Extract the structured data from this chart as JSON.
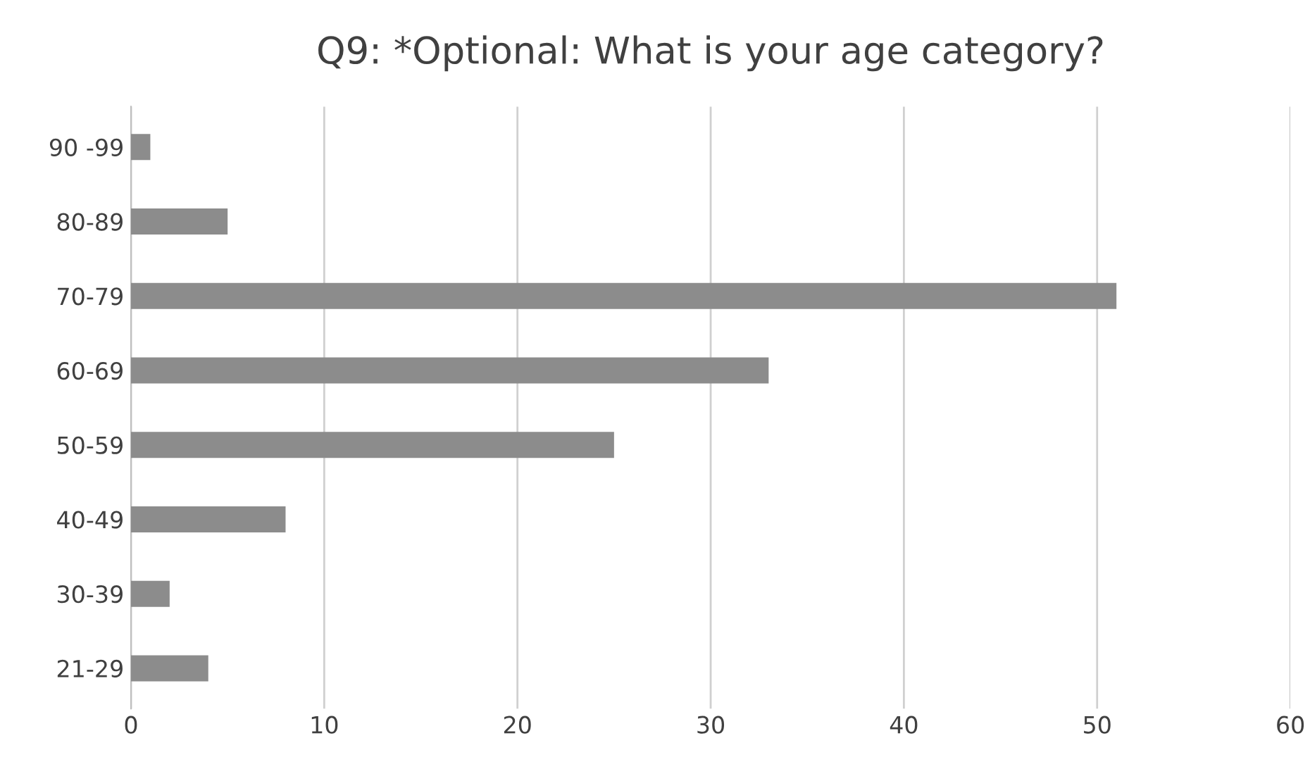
{
  "chart_data": {
    "type": "bar",
    "orientation": "horizontal",
    "title": "Q9: *Optional: What is your age category?",
    "categories": [
      "90 -99",
      "80-89",
      "70-79",
      "60-69",
      "50-59",
      "40-49",
      "30-39",
      "21-29"
    ],
    "values": [
      1,
      5,
      51,
      33,
      25,
      8,
      2,
      4
    ],
    "color": "#8c8c8c",
    "xlim": [
      0,
      60
    ],
    "xticks": [
      0,
      10,
      20,
      30,
      40,
      50,
      60
    ],
    "grid": "x"
  }
}
